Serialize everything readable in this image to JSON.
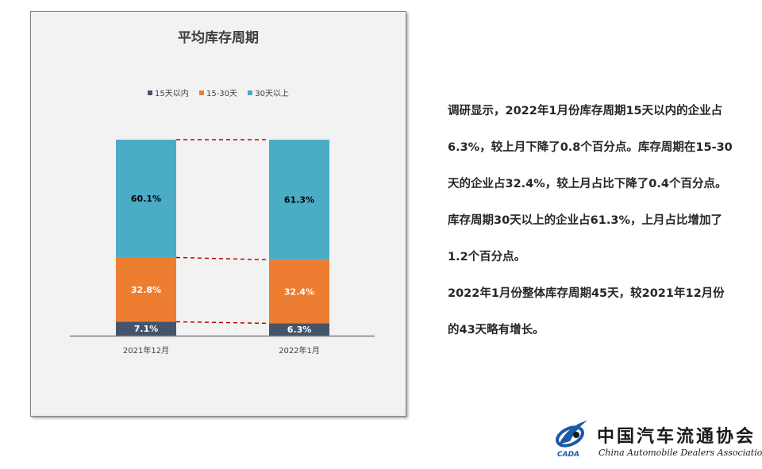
{
  "chart_data": {
    "type": "bar",
    "stacked": true,
    "percent_stacked": true,
    "title": "平均库存周期",
    "categories": [
      "2021年12月",
      "2022年1月"
    ],
    "series": [
      {
        "name": "15天以内",
        "values": [
          7.1,
          6.3
        ],
        "labels": [
          "7.1%",
          "6.3%"
        ],
        "color": "#44546a",
        "label_color": "#ffffff"
      },
      {
        "name": "15-30天",
        "values": [
          32.8,
          32.4
        ],
        "labels": [
          "32.8%",
          "32.4%"
        ],
        "color": "#ed7d31",
        "label_color": "#ffffff"
      },
      {
        "name": "30天以上",
        "values": [
          60.1,
          61.3
        ],
        "labels": [
          "60.1%",
          "61.3%"
        ],
        "color": "#4bacc6",
        "label_color": "#000000"
      }
    ],
    "ylim": [
      0,
      100
    ],
    "legend_position": "top",
    "series_lines": {
      "style": "dashed",
      "color": "#c00000"
    },
    "grid": false
  },
  "commentary": {
    "paragraphs": [
      "调研显示，2022年1月份库存周期15天以内的企业占6.3%，较上月下降了0.8个百分点。库存周期在15-30天的企业占32.4%，较上月占比下降了0.4个百分点。库存周期30天以上的企业占61.3%，上月占比增加了1.2个百分点。",
      "2022年1月份整体库存周期45天，较2021年12月份的43天略有增长。"
    ]
  },
  "logo": {
    "name_cn": "中国汽车流通协会",
    "name_en": "China Automobile Dealers Association",
    "abbr": "CADA"
  }
}
